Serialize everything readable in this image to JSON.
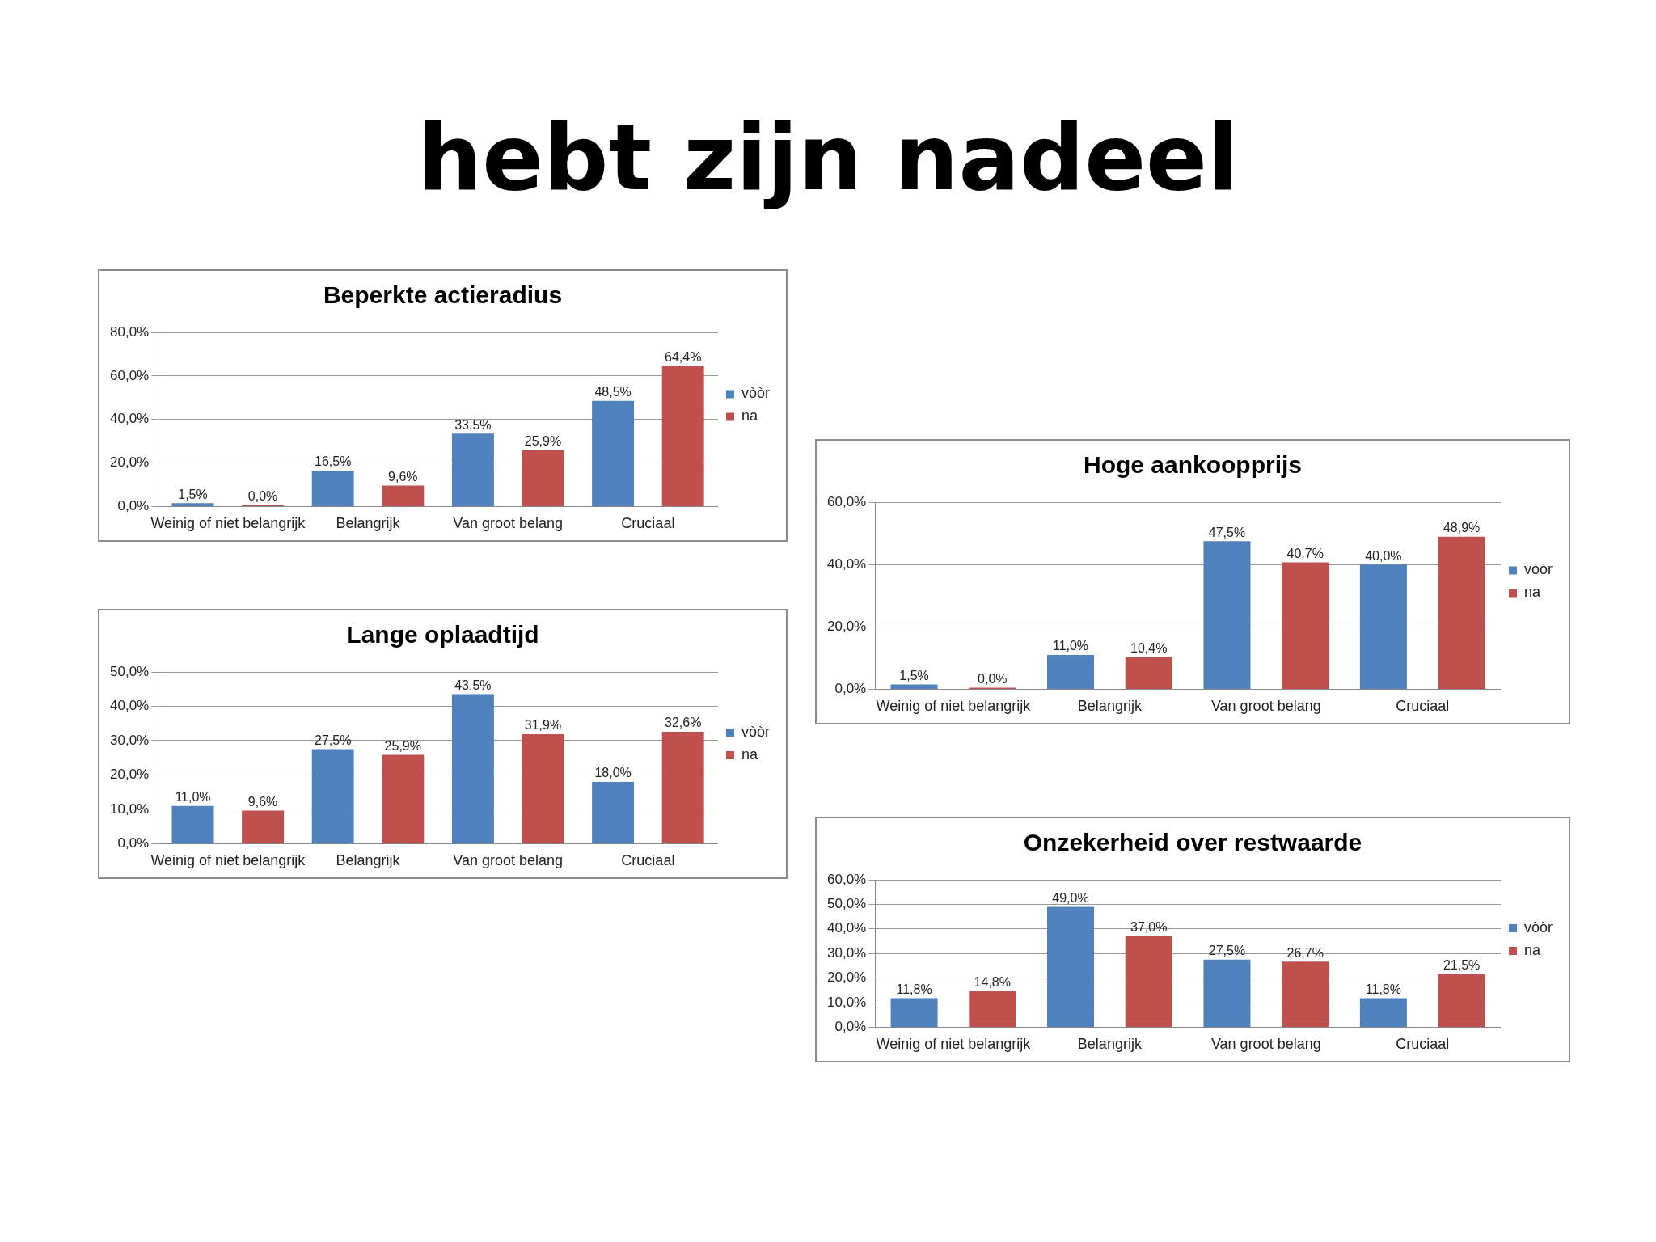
{
  "chart_data": [
    {
      "type": "bar",
      "title": "Beperkte actieradius",
      "annotations": [
        "hebt zijn nadeel"
      ],
      "categories": [
        "Weinig of niet belangrijk",
        "Belangrijk",
        "Van groot belang",
        "Cruciaal"
      ],
      "ylim": [
        0,
        80
      ],
      "yticks": [
        {
          "value": 0,
          "label": "0,0%"
        },
        {
          "value": 20,
          "label": "20,0%"
        },
        {
          "value": 40,
          "label": "40,0%"
        },
        {
          "value": 60,
          "label": "60,0%"
        },
        {
          "value": 80,
          "label": "80,0%"
        }
      ],
      "grid": "y",
      "legend": "right",
      "series": [
        {
          "name": "vòòr",
          "color": "#4f81bd",
          "values": [
            1.5,
            16.5,
            33.5,
            48.5
          ],
          "value_labels": [
            "1,5%",
            "16,5%",
            "33,5%",
            "48,5%"
          ]
        },
        {
          "name": "na",
          "color": "#c0504d",
          "values": [
            0,
            9.6,
            25.9,
            64.4
          ],
          "value_labels": [
            "0,0%",
            "9,6%",
            "25,9%",
            "64,4%"
          ]
        }
      ]
    },
    {
      "type": "bar",
      "title": "Lange oplaadtijd",
      "categories": [
        "Weinig of niet belangrijk",
        "Belangrijk",
        "Van groot belang",
        "Cruciaal"
      ],
      "ylim": [
        0,
        50
      ],
      "yticks": [
        {
          "value": 0,
          "label": "0,0%"
        },
        {
          "value": 10,
          "label": "10,0%"
        },
        {
          "value": 20,
          "label": "20,0%"
        },
        {
          "value": 30,
          "label": "30,0%"
        },
        {
          "value": 40,
          "label": "40,0%"
        },
        {
          "value": 50,
          "label": "50,0%"
        }
      ],
      "grid": "y",
      "legend": "right",
      "series": [
        {
          "name": "vòòr",
          "color": "#4f81bd",
          "values": [
            11.0,
            27.5,
            43.5,
            18.0
          ],
          "value_labels": [
            "11,0%",
            "27,5%",
            "43,5%",
            "18,0%"
          ]
        },
        {
          "name": "na",
          "color": "#c0504d",
          "values": [
            9.6,
            25.9,
            31.9,
            32.6
          ],
          "value_labels": [
            "9,6%",
            "25,9%",
            "31,9%",
            "32,6%"
          ]
        }
      ]
    },
    {
      "type": "bar",
      "title": "Hoge aankoopprijs",
      "categories": [
        "Weinig of niet belangrijk",
        "Belangrijk",
        "Van groot belang",
        "Cruciaal"
      ],
      "ylim": [
        0,
        60
      ],
      "yticks": [
        {
          "value": 0,
          "label": "0,0%"
        },
        {
          "value": 20,
          "label": "20,0%"
        },
        {
          "value": 40,
          "label": "40,0%"
        },
        {
          "value": 60,
          "label": "60,0%"
        }
      ],
      "grid": "y",
      "legend": "right",
      "series": [
        {
          "name": "vòòr",
          "color": "#4f81bd",
          "values": [
            1.5,
            11.0,
            47.5,
            40.0
          ],
          "value_labels": [
            "1,5%",
            "11,0%",
            "47,5%",
            "40,0%"
          ]
        },
        {
          "name": "na",
          "color": "#c0504d",
          "values": [
            0,
            10.4,
            40.7,
            48.9
          ],
          "value_labels": [
            "0,0%",
            "10,4%",
            "40,7%",
            "48,9%"
          ]
        }
      ]
    },
    {
      "type": "bar",
      "title": "Onzekerheid over restwaarde",
      "categories": [
        "Weinig of niet belangrijk",
        "Belangrijk",
        "Van groot belang",
        "Cruciaal"
      ],
      "ylim": [
        0,
        60
      ],
      "yticks": [
        {
          "value": 0,
          "label": "0,0%"
        },
        {
          "value": 10,
          "label": "10,0%"
        },
        {
          "value": 20,
          "label": "20,0%"
        },
        {
          "value": 30,
          "label": "30,0%"
        },
        {
          "value": 40,
          "label": "40,0%"
        },
        {
          "value": 50,
          "label": "50,0%"
        },
        {
          "value": 60,
          "label": "60,0%"
        }
      ],
      "grid": "y",
      "legend": "right",
      "series": [
        {
          "name": "vòòr",
          "color": "#4f81bd",
          "values": [
            11.8,
            49.0,
            27.5,
            11.8
          ],
          "value_labels": [
            "11,8%",
            "49,0%",
            "27,5%",
            "11,8%"
          ]
        },
        {
          "name": "na",
          "color": "#c0504d",
          "values": [
            14.8,
            37.0,
            26.7,
            21.5
          ],
          "value_labels": [
            "14,8%",
            "37,0%",
            "26,7%",
            "21,5%"
          ]
        }
      ]
    }
  ]
}
